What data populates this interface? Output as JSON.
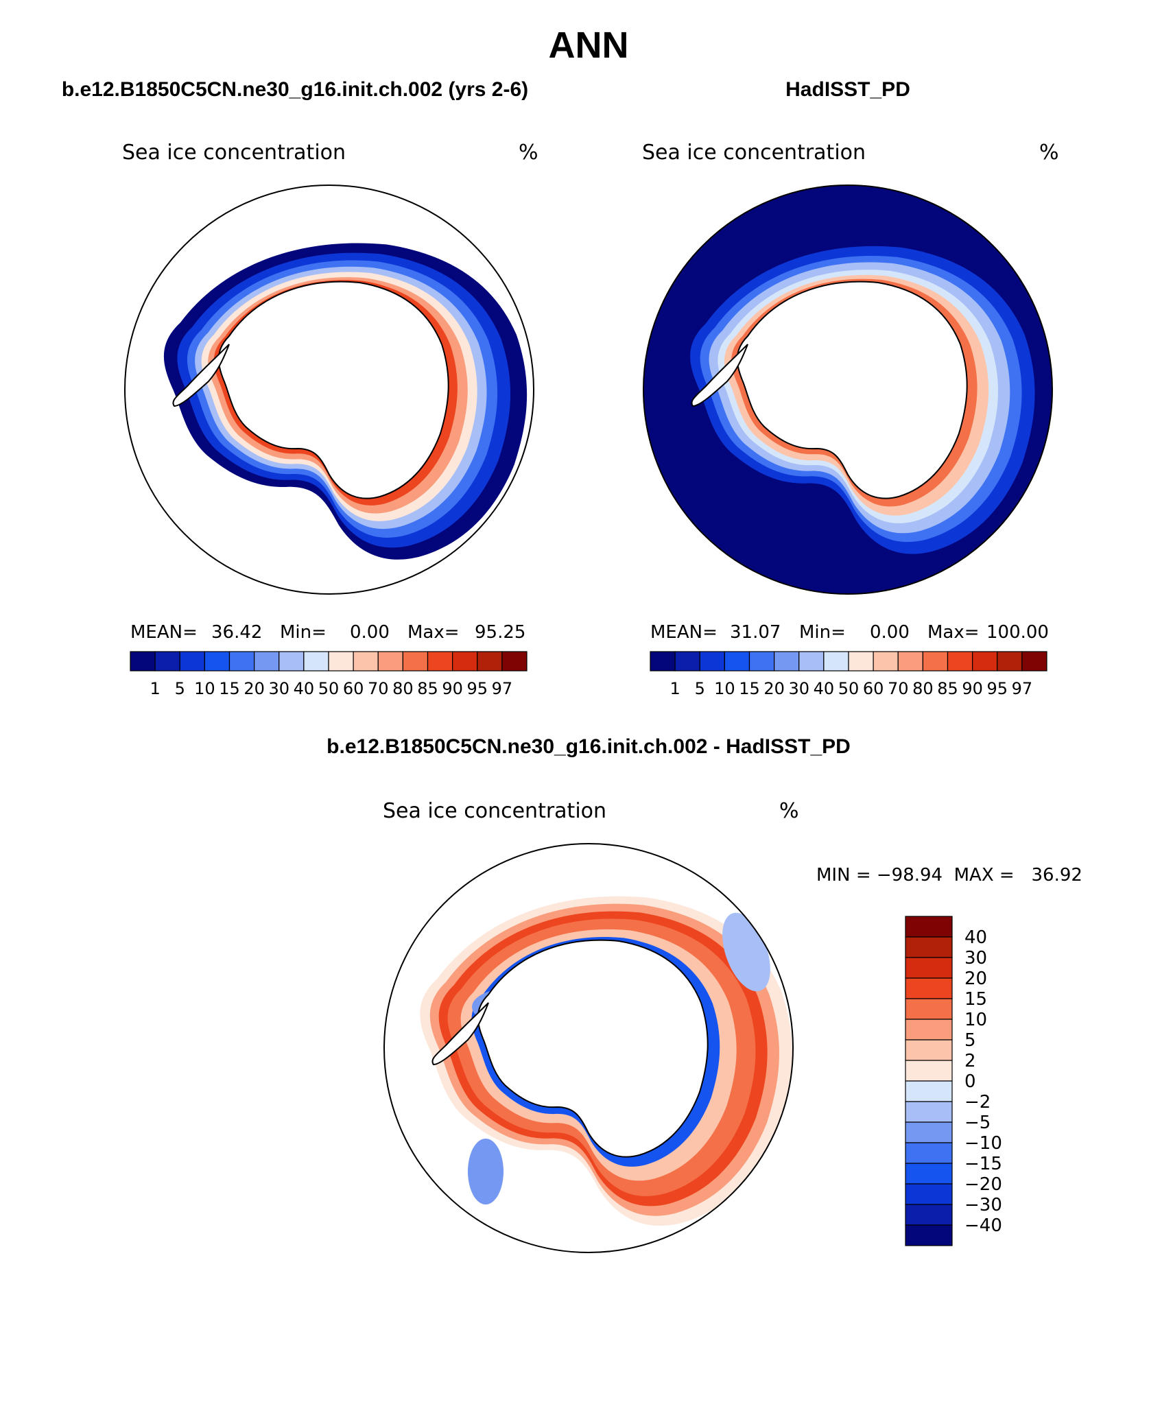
{
  "page_title": "ANN",
  "panels": {
    "model": {
      "header": "b.e12.B1850C5CN.ne30_g16.init.ch.002 (yrs 2-6)",
      "variable": "Sea ice concentration",
      "units": "%",
      "stats": {
        "mean_label": "MEAN=",
        "mean": "36.42",
        "min_label": "Min=",
        "min": "0.00",
        "max_label": "Max=",
        "max": "95.25"
      }
    },
    "obs": {
      "header": "HadISST_PD",
      "variable": "Sea ice concentration",
      "units": "%",
      "stats": {
        "mean_label": "MEAN=",
        "mean": "31.07",
        "min_label": "Min=",
        "min": "0.00",
        "max_label": "Max=",
        "max": "100.00"
      }
    },
    "diff": {
      "header": "b.e12.B1850C5CN.ne30_g16.init.ch.002 - HadISST_PD",
      "variable": "Sea ice concentration",
      "units": "%",
      "minmax": "MIN = −98.94  MAX =   36.92"
    }
  },
  "colorbars": {
    "abs": {
      "labels": [
        "1",
        "5",
        "10",
        "15",
        "20",
        "30",
        "40",
        "50",
        "60",
        "70",
        "80",
        "85",
        "90",
        "95",
        "97"
      ],
      "colors": [
        "#03057a",
        "#0a1dab",
        "#0d36d6",
        "#1654f0",
        "#3e72f3",
        "#7598f2",
        "#a7bff6",
        "#d6e6fa",
        "#fde7da",
        "#fcc5ab",
        "#f99d7c",
        "#f47048",
        "#ec4520",
        "#d52b0e",
        "#b1210a",
        "#7f0303"
      ]
    },
    "diff": {
      "labels": [
        "40",
        "30",
        "20",
        "15",
        "10",
        "5",
        "2",
        "0",
        "−2",
        "−5",
        "−10",
        "−15",
        "−20",
        "−30",
        "−40"
      ],
      "colors": [
        "#7f0303",
        "#b1210a",
        "#d52b0e",
        "#ec4520",
        "#f47048",
        "#f99d7c",
        "#fcc5ab",
        "#fde7da",
        "#d6e6fa",
        "#a7bff6",
        "#7598f2",
        "#3e72f3",
        "#1654f0",
        "#0d36d6",
        "#0a1dab",
        "#03057a"
      ]
    }
  },
  "colors": {
    "land": "#ffffff",
    "outline": "#000000"
  }
}
